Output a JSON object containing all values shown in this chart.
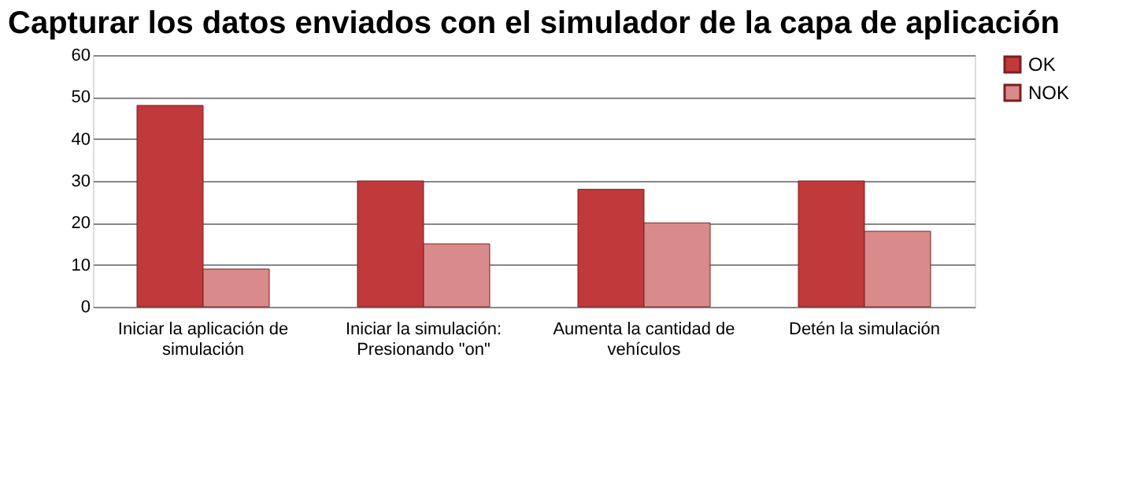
{
  "chart_data": {
    "type": "bar",
    "title": "Capturar los datos enviados con el simulador de la capa de aplicación",
    "categories": [
      "Iniciar la aplicación de\nsimulación",
      "Iniciar la simulación:\nPresionando \"on\"",
      "Aumenta la cantidad de\nvehículos",
      "Detén la simulación"
    ],
    "series": [
      {
        "name": "OK",
        "color": "#c0393b",
        "values": [
          48,
          30,
          28,
          30
        ]
      },
      {
        "name": "NOK",
        "color": "#d98b8c",
        "values": [
          9,
          15,
          20,
          18
        ]
      }
    ],
    "ylim": [
      0,
      60
    ],
    "yticks": [
      0,
      10,
      20,
      30,
      40,
      50,
      60
    ],
    "grid": "y",
    "legend": "right"
  }
}
